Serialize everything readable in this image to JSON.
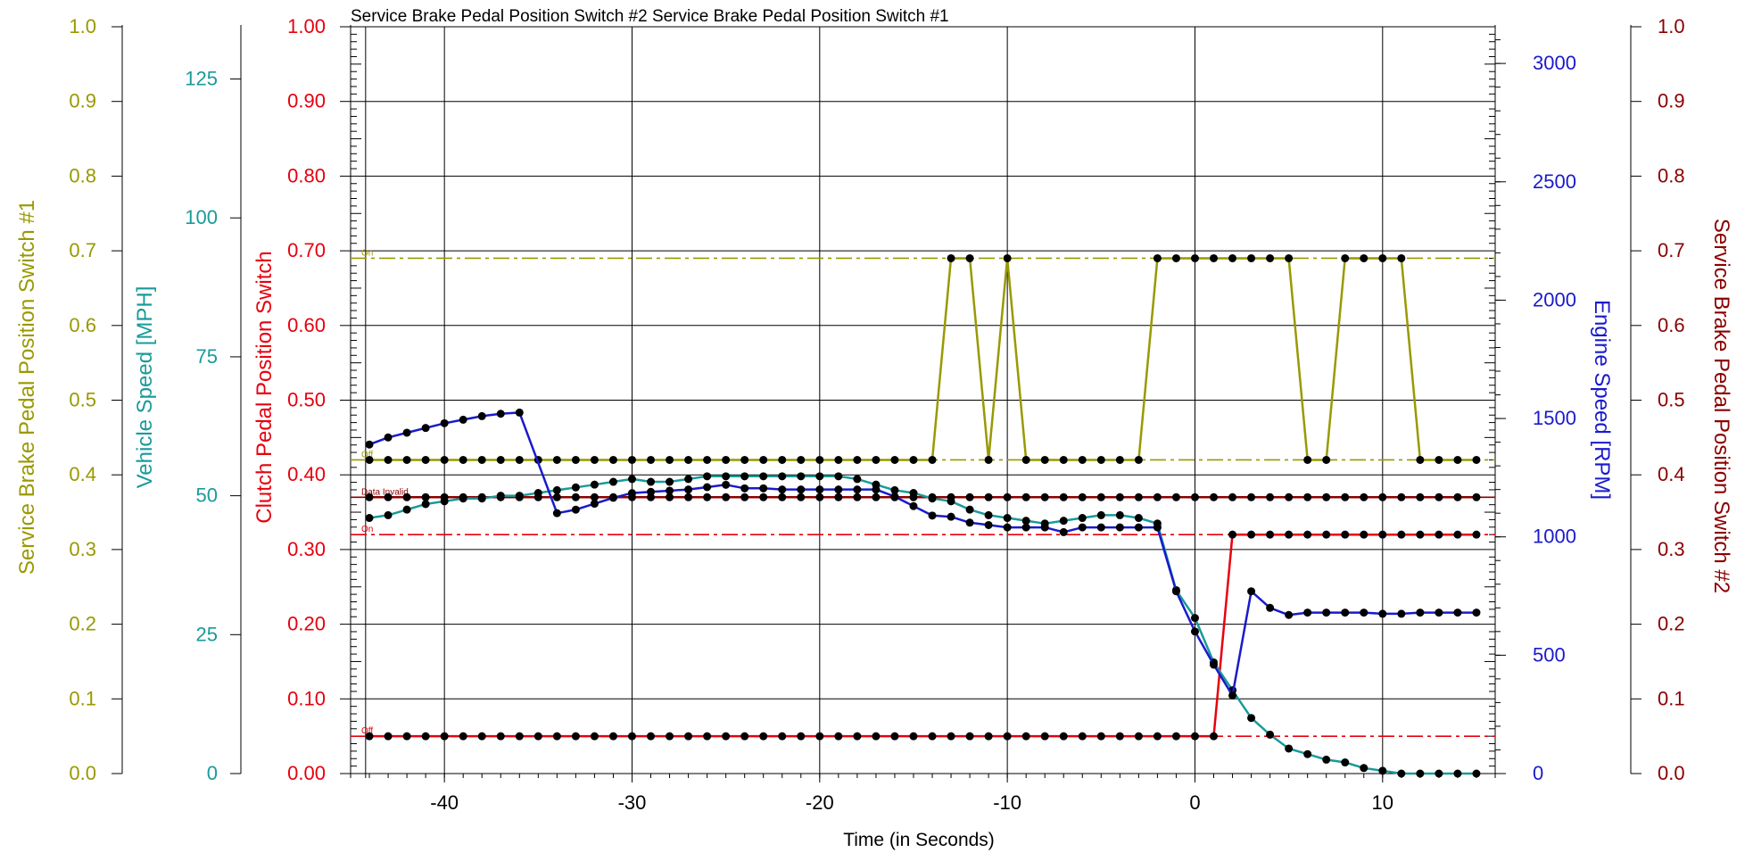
{
  "title": "Service Brake Pedal Position Switch #2 Service Brake Pedal Position Switch #1",
  "colors": {
    "brake1": "#999900",
    "brake2": "#8b0000",
    "clutch": "#e8000e",
    "speed": "#1a9a9a",
    "rpm": "#1a1acc",
    "grid": "#000000",
    "marker": "#000000"
  },
  "chart_data": {
    "type": "line",
    "title": "Service Brake Pedal Position Switch #2 Service Brake Pedal Position Switch #1",
    "xlabel": "Time (in Seconds)",
    "xlim": [
      -45,
      16
    ],
    "x_ticks": [
      -40,
      -30,
      -20,
      -10,
      0,
      10
    ],
    "grid": "on",
    "axes": {
      "brake1": {
        "title": "Service Brake Pedal Position Switch #1",
        "ylim": [
          0,
          1
        ],
        "ticks": [
          "0.0",
          "0.1",
          "0.2",
          "0.3",
          "0.4",
          "0.5",
          "0.6",
          "0.7",
          "0.8",
          "0.9",
          "1.0"
        ]
      },
      "speed": {
        "title": "Vehicle Speed [MPH]",
        "ylim": [
          0,
          134.4
        ],
        "ticks": [
          "0",
          "25",
          "50",
          "75",
          "100",
          "125"
        ]
      },
      "clutch": {
        "title": "Clutch Pedal Position Switch",
        "ylim": [
          0,
          1
        ],
        "ticks": [
          "0.00",
          "0.10",
          "0.20",
          "0.30",
          "0.40",
          "0.50",
          "0.60",
          "0.70",
          "0.80",
          "0.90",
          "1.00"
        ]
      },
      "rpm": {
        "title": "Engine Speed [RPM]",
        "ylim": [
          0,
          3155
        ],
        "ticks": [
          "0",
          "500",
          "1000",
          "1500",
          "2000",
          "2500",
          "3000"
        ]
      },
      "brake2": {
        "title": "Service Brake Pedal Position Switch #2",
        "ylim": [
          0,
          1
        ],
        "ticks": [
          "0.0",
          "0.1",
          "0.2",
          "0.3",
          "0.4",
          "0.5",
          "0.6",
          "0.7",
          "0.8",
          "0.9",
          "1.0"
        ]
      }
    },
    "annotations": [
      {
        "text": "On",
        "series": "brake1",
        "y": 0.69
      },
      {
        "text": "Off",
        "series": "brake1",
        "y": 0.42
      },
      {
        "text": "Data Invalid",
        "series": "brake2",
        "y": 0.37
      },
      {
        "text": "On",
        "series": "clutch",
        "y": 0.32
      },
      {
        "text": "Off",
        "series": "clutch",
        "y": 0.05
      }
    ],
    "reference_lines": [
      {
        "series": "brake1",
        "y": 0.69,
        "style": "dashdot"
      },
      {
        "series": "brake1",
        "y": 0.42,
        "style": "dashdot"
      },
      {
        "series": "brake2",
        "y": 0.37,
        "style": "solid"
      },
      {
        "series": "clutch",
        "y": 0.32,
        "style": "dashdot"
      },
      {
        "series": "clutch",
        "y": 0.05,
        "style": "dashdot"
      }
    ],
    "series": [
      {
        "name": "Service Brake Pedal Position Switch #1",
        "axis": "brake1",
        "x": [
          -44,
          -43,
          -42,
          -41,
          -40,
          -39,
          -38,
          -37,
          -36,
          -35,
          -34,
          -33,
          -32,
          -31,
          -30,
          -29,
          -28,
          -27,
          -26,
          -25,
          -24,
          -23,
          -22,
          -21,
          -20,
          -19,
          -18,
          -17,
          -16,
          -15,
          -14,
          -13,
          -12,
          -11,
          -10,
          -9,
          -8,
          -7,
          -6,
          -5,
          -4,
          -3,
          -2,
          -1,
          0,
          1,
          2,
          3,
          4,
          5,
          6,
          7,
          8,
          9,
          10,
          11,
          12,
          13,
          14,
          15
        ],
        "values": [
          0.42,
          0.42,
          0.42,
          0.42,
          0.42,
          0.42,
          0.42,
          0.42,
          0.42,
          0.42,
          0.42,
          0.42,
          0.42,
          0.42,
          0.42,
          0.42,
          0.42,
          0.42,
          0.42,
          0.42,
          0.42,
          0.42,
          0.42,
          0.42,
          0.42,
          0.42,
          0.42,
          0.42,
          0.42,
          0.42,
          0.42,
          0.69,
          0.69,
          0.42,
          0.69,
          0.42,
          0.42,
          0.42,
          0.42,
          0.42,
          0.42,
          0.42,
          0.69,
          0.69,
          0.69,
          0.69,
          0.69,
          0.69,
          0.69,
          0.69,
          0.42,
          0.42,
          0.69,
          0.69,
          0.69,
          0.69,
          0.42,
          0.42,
          0.42,
          0.42
        ]
      },
      {
        "name": "Service Brake Pedal Position Switch #2",
        "axis": "brake2",
        "x": [
          -44,
          -43,
          -42,
          -41,
          -40,
          -39,
          -38,
          -37,
          -36,
          -35,
          -34,
          -33,
          -32,
          -31,
          -30,
          -29,
          -28,
          -27,
          -26,
          -25,
          -24,
          -23,
          -22,
          -21,
          -20,
          -19,
          -18,
          -17,
          -16,
          -15,
          -14,
          -13,
          -12,
          -11,
          -10,
          -9,
          -8,
          -7,
          -6,
          -5,
          -4,
          -3,
          -2,
          -1,
          0,
          1,
          2,
          3,
          4,
          5,
          6,
          7,
          8,
          9,
          10,
          11,
          12,
          13,
          14,
          15
        ],
        "values": [
          0.37,
          0.37,
          0.37,
          0.37,
          0.37,
          0.37,
          0.37,
          0.37,
          0.37,
          0.37,
          0.37,
          0.37,
          0.37,
          0.37,
          0.37,
          0.37,
          0.37,
          0.37,
          0.37,
          0.37,
          0.37,
          0.37,
          0.37,
          0.37,
          0.37,
          0.37,
          0.37,
          0.37,
          0.37,
          0.37,
          0.37,
          0.37,
          0.37,
          0.37,
          0.37,
          0.37,
          0.37,
          0.37,
          0.37,
          0.37,
          0.37,
          0.37,
          0.37,
          0.37,
          0.37,
          0.37,
          0.37,
          0.37,
          0.37,
          0.37,
          0.37,
          0.37,
          0.37,
          0.37,
          0.37,
          0.37,
          0.37,
          0.37,
          0.37,
          0.37
        ]
      },
      {
        "name": "Clutch Pedal Position Switch",
        "axis": "clutch",
        "x": [
          -44,
          -43,
          -42,
          -41,
          -40,
          -39,
          -38,
          -37,
          -36,
          -35,
          -34,
          -33,
          -32,
          -31,
          -30,
          -29,
          -28,
          -27,
          -26,
          -25,
          -24,
          -23,
          -22,
          -21,
          -20,
          -19,
          -18,
          -17,
          -16,
          -15,
          -14,
          -13,
          -12,
          -11,
          -10,
          -9,
          -8,
          -7,
          -6,
          -5,
          -4,
          -3,
          -2,
          -1,
          0,
          1,
          2,
          3,
          4,
          5,
          6,
          7,
          8,
          9,
          10,
          11,
          12,
          13,
          14,
          15
        ],
        "values": [
          0.05,
          0.05,
          0.05,
          0.05,
          0.05,
          0.05,
          0.05,
          0.05,
          0.05,
          0.05,
          0.05,
          0.05,
          0.05,
          0.05,
          0.05,
          0.05,
          0.05,
          0.05,
          0.05,
          0.05,
          0.05,
          0.05,
          0.05,
          0.05,
          0.05,
          0.05,
          0.05,
          0.05,
          0.05,
          0.05,
          0.05,
          0.05,
          0.05,
          0.05,
          0.05,
          0.05,
          0.05,
          0.05,
          0.05,
          0.05,
          0.05,
          0.05,
          0.05,
          0.05,
          0.05,
          0.05,
          0.32,
          0.32,
          0.32,
          0.32,
          0.32,
          0.32,
          0.32,
          0.32,
          0.32,
          0.32,
          0.32,
          0.32,
          0.32,
          0.32
        ]
      },
      {
        "name": "Vehicle Speed [MPH]",
        "axis": "speed",
        "x": [
          -44,
          -43,
          -42,
          -41,
          -40,
          -39,
          -38,
          -37,
          -36,
          -35,
          -34,
          -33,
          -32,
          -31,
          -30,
          -29,
          -28,
          -27,
          -26,
          -25,
          -24,
          -23,
          -22,
          -21,
          -20,
          -19,
          -18,
          -17,
          -16,
          -15,
          -14,
          -13,
          -12,
          -11,
          -10,
          -9,
          -8,
          -7,
          -6,
          -5,
          -4,
          -3,
          -2,
          -1,
          0,
          1,
          2,
          3,
          4,
          5,
          6,
          7,
          8,
          9,
          10,
          11,
          12,
          13,
          14,
          15
        ],
        "values": [
          46,
          46.5,
          47.5,
          48.5,
          49,
          49.5,
          49.5,
          50,
          50,
          50.5,
          51,
          51.5,
          52,
          52.5,
          53,
          52.5,
          52.5,
          53,
          53.5,
          53.5,
          53.5,
          53.5,
          53.5,
          53.5,
          53.5,
          53.5,
          53,
          52,
          51,
          50.5,
          49.5,
          49,
          47.5,
          46.5,
          46,
          45.5,
          45,
          45.5,
          46,
          46.5,
          46.5,
          46,
          45,
          33,
          28,
          20,
          15,
          10,
          7,
          4.5,
          3.5,
          2.5,
          2,
          1,
          0.5,
          0,
          0,
          0,
          0,
          0
        ]
      },
      {
        "name": "Engine Speed [RPM]",
        "axis": "rpm",
        "x": [
          -44,
          -43,
          -42,
          -41,
          -40,
          -39,
          -38,
          -37,
          -36,
          -34,
          -33,
          -32,
          -31,
          -30,
          -29,
          -28,
          -27,
          -26,
          -25,
          -24,
          -23,
          -22,
          -21,
          -20,
          -19,
          -18,
          -17,
          -16,
          -15,
          -14,
          -13,
          -12,
          -11,
          -10,
          -9,
          -8,
          -7,
          -6,
          -5,
          -4,
          -3,
          -2,
          -1,
          0,
          1,
          2,
          3,
          4,
          5,
          6,
          7,
          8,
          9,
          10,
          11,
          12,
          13,
          14,
          15
        ],
        "values": [
          1390,
          1420,
          1440,
          1460,
          1480,
          1495,
          1510,
          1520,
          1525,
          1100,
          1115,
          1140,
          1165,
          1185,
          1190,
          1195,
          1200,
          1210,
          1220,
          1205,
          1205,
          1200,
          1200,
          1200,
          1200,
          1200,
          1200,
          1170,
          1130,
          1090,
          1085,
          1060,
          1050,
          1040,
          1040,
          1040,
          1020,
          1040,
          1040,
          1040,
          1040,
          1040,
          770,
          600,
          460,
          330,
          770,
          700,
          670,
          680,
          680,
          680,
          680,
          675,
          675,
          680,
          680,
          680,
          680
        ]
      }
    ]
  }
}
